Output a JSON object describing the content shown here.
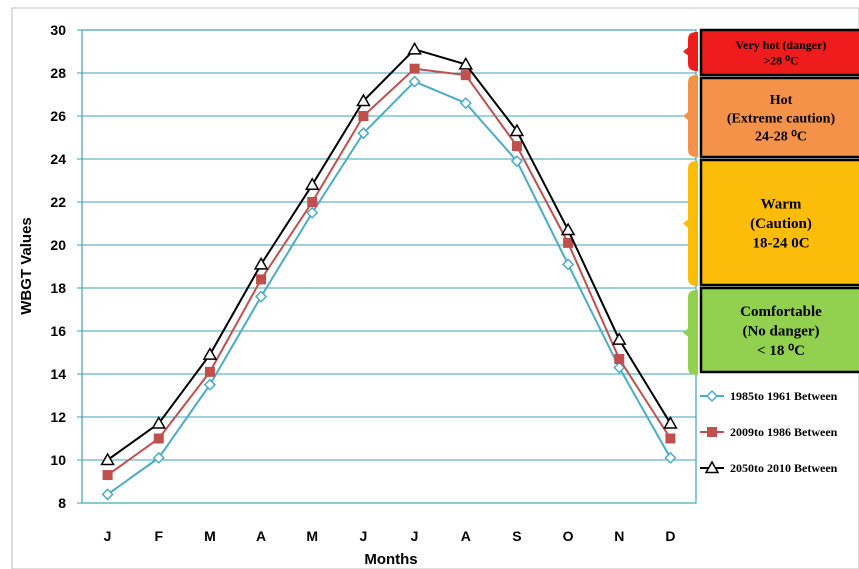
{
  "chart_data": {
    "type": "line",
    "xlabel": "Months",
    "ylabel": "WBGT Values",
    "ylim": [
      8,
      30
    ],
    "yticks": [
      8,
      10,
      12,
      14,
      16,
      18,
      20,
      22,
      24,
      26,
      28,
      30
    ],
    "categories": [
      "J",
      "F",
      "M",
      "A",
      "M",
      "J",
      "J",
      "A",
      "S",
      "O",
      "N",
      "D"
    ],
    "grid": "horizontal",
    "legend_position": "right",
    "series": [
      {
        "name": "1985to 1961 Between",
        "color": "#4bacc6",
        "marker": "diamond-open",
        "values": [
          8.4,
          10.1,
          13.5,
          17.6,
          21.5,
          25.2,
          27.6,
          26.6,
          23.9,
          19.1,
          14.3,
          10.1
        ]
      },
      {
        "name": "2009to 1986 Between",
        "color": "#c0504d",
        "marker": "square-filled",
        "values": [
          9.3,
          11.0,
          14.1,
          18.4,
          22.0,
          26.0,
          28.2,
          27.9,
          24.6,
          20.1,
          14.7,
          11.0
        ]
      },
      {
        "name": "2050to 2010 Between",
        "color": "#000000",
        "marker": "triangle-open",
        "values": [
          10.0,
          11.7,
          14.9,
          19.1,
          22.8,
          26.7,
          29.1,
          28.4,
          25.3,
          20.7,
          15.6,
          11.7
        ]
      }
    ],
    "categories_scale": [
      {
        "label_lines": [
          "Very hot (danger)",
          ">28 ⁰C"
        ],
        "min": 28,
        "max": 30,
        "color": "#ee1c1c"
      },
      {
        "label_lines": [
          "Hot",
          "(Extreme caution)",
          "24-28 ⁰C"
        ],
        "min": 24,
        "max": 28,
        "color": "#f4924a"
      },
      {
        "label_lines": [
          "Warm",
          "(Caution)",
          "18-24 0C"
        ],
        "min": 18,
        "max": 24,
        "color": "#fbbd09"
      },
      {
        "label_lines": [
          "Comfortable",
          "(No danger)",
          "< 18 ⁰C"
        ],
        "min": 8,
        "max": 18,
        "color": "#92d050"
      }
    ]
  }
}
